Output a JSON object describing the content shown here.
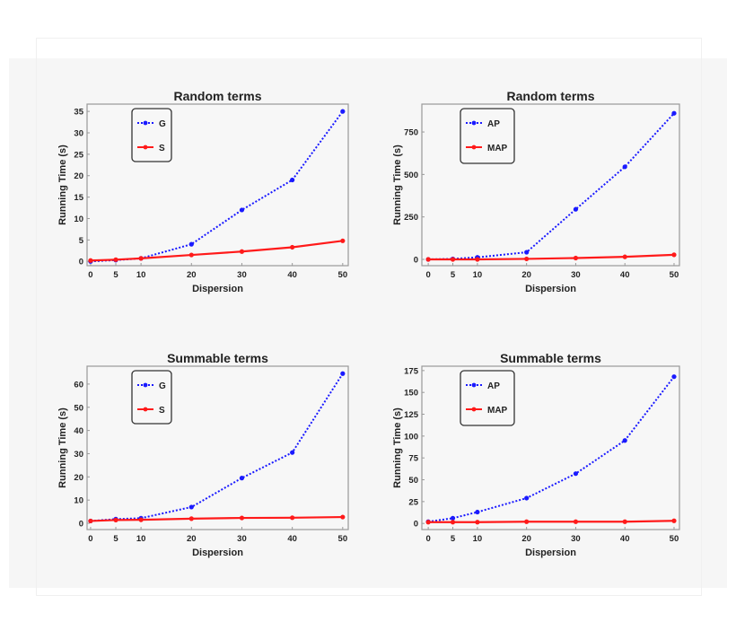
{
  "chart_data": [
    {
      "type": "line",
      "title": "Random terms",
      "xlabel": "Dispersion",
      "ylabel": "Running Time (s)",
      "x": [
        0,
        5,
        10,
        20,
        30,
        40,
        50
      ],
      "xticks": [
        0,
        5,
        10,
        20,
        30,
        40,
        50
      ],
      "yticks": [
        0,
        5,
        10,
        15,
        20,
        25,
        30,
        35
      ],
      "xlim": [
        -0.7,
        51.1
      ],
      "ylim": [
        -1,
        36.7
      ],
      "legend": "top-left",
      "grid": false,
      "series": [
        {
          "name": "G",
          "color": "#1a1aff",
          "style": "dotted",
          "values": [
            0,
            0.3,
            0.7,
            4,
            12,
            19,
            35
          ]
        },
        {
          "name": "S",
          "color": "#ff1a1a",
          "style": "solid",
          "values": [
            0.2,
            0.4,
            0.7,
            1.5,
            2.3,
            3.3,
            4.8
          ]
        }
      ]
    },
    {
      "type": "line",
      "title": "Random terms",
      "xlabel": "Dispersion",
      "ylabel": "Running Time (s)",
      "x": [
        0,
        5,
        10,
        20,
        30,
        40,
        50
      ],
      "xticks": [
        0,
        5,
        10,
        20,
        30,
        40,
        50
      ],
      "yticks": [
        0,
        250,
        500,
        750
      ],
      "xlim": [
        -1.3,
        51.1
      ],
      "ylim": [
        -37,
        914
      ],
      "legend": "top-left",
      "grid": false,
      "series": [
        {
          "name": "AP",
          "color": "#1a1aff",
          "style": "dotted",
          "values": [
            0,
            3,
            12,
            42,
            295,
            545,
            860
          ]
        },
        {
          "name": "MAP",
          "color": "#ff1a1a",
          "style": "solid",
          "values": [
            0,
            0,
            0,
            3,
            8,
            15,
            27
          ]
        }
      ]
    },
    {
      "type": "line",
      "title": "Summable terms",
      "xlabel": "Dispersion",
      "ylabel": "Running Time (s)",
      "x": [
        0,
        5,
        10,
        20,
        30,
        40,
        50
      ],
      "xticks": [
        0,
        5,
        10,
        20,
        30,
        40,
        50
      ],
      "yticks": [
        0,
        10,
        20,
        30,
        40,
        50,
        60
      ],
      "xlim": [
        -0.7,
        51.1
      ],
      "ylim": [
        -2.7,
        67.7
      ],
      "legend": "top-left",
      "grid": false,
      "series": [
        {
          "name": "G",
          "color": "#1a1aff",
          "style": "dotted",
          "values": [
            1,
            1.8,
            2.2,
            7,
            19.5,
            30.5,
            64.5
          ]
        },
        {
          "name": "S",
          "color": "#ff1a1a",
          "style": "solid",
          "values": [
            1,
            1.4,
            1.5,
            2,
            2.3,
            2.4,
            2.7
          ]
        }
      ]
    },
    {
      "type": "line",
      "title": "Summable terms",
      "xlabel": "Dispersion",
      "ylabel": "Running Time (s)",
      "x": [
        0,
        5,
        10,
        20,
        30,
        40,
        50
      ],
      "xticks": [
        0,
        5,
        10,
        20,
        30,
        40,
        50
      ],
      "yticks": [
        0,
        25,
        50,
        75,
        100,
        125,
        150,
        175
      ],
      "xlim": [
        -1.3,
        51.1
      ],
      "ylim": [
        -7,
        180
      ],
      "legend": "top-left",
      "grid": false,
      "series": [
        {
          "name": "AP",
          "color": "#1a1aff",
          "style": "dotted",
          "values": [
            2,
            6,
            13,
            29,
            57,
            95,
            168
          ]
        },
        {
          "name": "MAP",
          "color": "#ff1a1a",
          "style": "solid",
          "values": [
            1.5,
            1.5,
            1.5,
            2,
            2,
            2,
            3
          ]
        }
      ]
    }
  ]
}
